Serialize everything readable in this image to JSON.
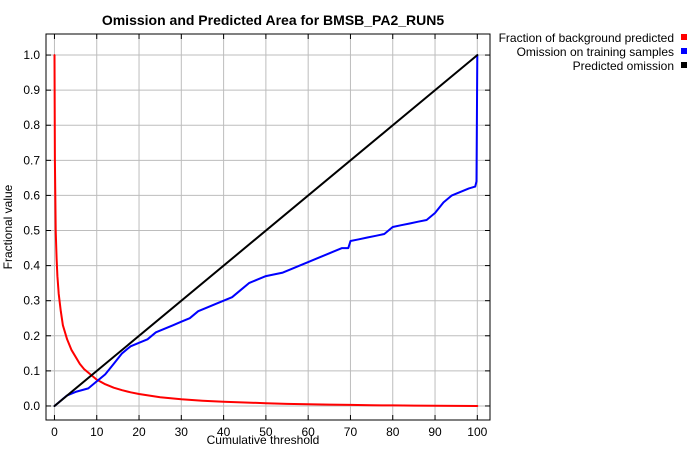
{
  "chart_data": {
    "type": "line",
    "title": "Omission and Predicted Area for BMSB_PA2_RUN5",
    "xlabel": "Cumulative threshold",
    "ylabel": "Fractional value",
    "xlim": [
      -2,
      103
    ],
    "ylim": [
      -0.04,
      1.06
    ],
    "x_ticks": [
      0,
      10,
      20,
      30,
      40,
      50,
      60,
      70,
      80,
      90,
      100
    ],
    "y_ticks": [
      0.0,
      0.1,
      0.2,
      0.3,
      0.4,
      0.5,
      0.6,
      0.7,
      0.8,
      0.9,
      1.0
    ],
    "y_tick_labels": [
      "0.0",
      "0.1",
      "0.2",
      "0.3",
      "0.4",
      "0.5",
      "0.6",
      "0.7",
      "0.8",
      "0.9",
      "1.0"
    ],
    "grid": true,
    "legend_position": "outside-top-right",
    "series": [
      {
        "name": "Fraction of background predicted",
        "color": "#ff0000",
        "x": [
          0,
          0.05,
          0.1,
          0.2,
          0.3,
          0.5,
          0.7,
          1,
          1.5,
          2,
          3,
          4,
          5,
          6,
          7,
          8,
          9,
          10,
          12,
          14,
          16,
          18,
          20,
          25,
          30,
          35,
          40,
          45,
          50,
          55,
          60,
          65,
          70,
          75,
          80,
          85,
          90,
          95,
          100
        ],
        "y": [
          1.0,
          0.85,
          0.7,
          0.6,
          0.5,
          0.42,
          0.37,
          0.32,
          0.27,
          0.23,
          0.19,
          0.16,
          0.14,
          0.12,
          0.105,
          0.095,
          0.085,
          0.075,
          0.062,
          0.052,
          0.045,
          0.039,
          0.034,
          0.025,
          0.019,
          0.015,
          0.012,
          0.01,
          0.008,
          0.006,
          0.005,
          0.004,
          0.003,
          0.002,
          0.0015,
          0.001,
          0.0005,
          0.0002,
          0.0
        ]
      },
      {
        "name": "Omission on training samples",
        "color": "#0000ff",
        "x": [
          0,
          1,
          2,
          3,
          5,
          8,
          10,
          12,
          14,
          16,
          18,
          20,
          22,
          24,
          26,
          28,
          30,
          32,
          34,
          36,
          38,
          40,
          42,
          44,
          46,
          48,
          50,
          52,
          54,
          56,
          58,
          60,
          62,
          64,
          66,
          68,
          69.5,
          70,
          72,
          74,
          76,
          78,
          80,
          82,
          84,
          86,
          88,
          90,
          92,
          94,
          96,
          98,
          99.5,
          99.8,
          100
        ],
        "y": [
          0.0,
          0.01,
          0.02,
          0.03,
          0.04,
          0.05,
          0.07,
          0.09,
          0.12,
          0.15,
          0.17,
          0.18,
          0.19,
          0.21,
          0.22,
          0.23,
          0.24,
          0.25,
          0.27,
          0.28,
          0.29,
          0.3,
          0.31,
          0.33,
          0.35,
          0.36,
          0.37,
          0.375,
          0.38,
          0.39,
          0.4,
          0.41,
          0.42,
          0.43,
          0.44,
          0.45,
          0.45,
          0.47,
          0.475,
          0.48,
          0.485,
          0.49,
          0.51,
          0.515,
          0.52,
          0.525,
          0.53,
          0.55,
          0.58,
          0.6,
          0.61,
          0.62,
          0.625,
          0.64,
          1.0
        ]
      },
      {
        "name": "Predicted omission",
        "color": "#000000",
        "x": [
          0,
          100
        ],
        "y": [
          0.0,
          1.0
        ]
      }
    ]
  }
}
